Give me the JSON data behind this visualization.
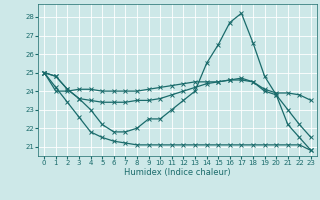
{
  "xlabel": "Humidex (Indice chaleur)",
  "bg_color": "#cde8e8",
  "line_color": "#1a6b6b",
  "grid_color": "#ffffff",
  "xlim": [
    -0.5,
    23.5
  ],
  "ylim": [
    20.5,
    28.7
  ],
  "yticks": [
    21,
    22,
    23,
    24,
    25,
    26,
    27,
    28
  ],
  "xticks": [
    0,
    1,
    2,
    3,
    4,
    5,
    6,
    7,
    8,
    9,
    10,
    11,
    12,
    13,
    14,
    15,
    16,
    17,
    18,
    19,
    20,
    21,
    22,
    23
  ],
  "series": [
    [
      25.0,
      24.8,
      24.1,
      23.6,
      23.0,
      22.2,
      21.8,
      21.8,
      22.0,
      22.5,
      22.5,
      23.0,
      23.5,
      24.0,
      25.5,
      26.5,
      27.7,
      28.2,
      26.6,
      24.8,
      23.8,
      22.2,
      21.5,
      20.8
    ],
    [
      25.0,
      24.8,
      24.1,
      23.6,
      23.5,
      23.4,
      23.4,
      23.4,
      23.5,
      23.5,
      23.6,
      23.8,
      24.0,
      24.2,
      24.4,
      24.5,
      24.6,
      24.6,
      24.5,
      24.0,
      23.8,
      23.0,
      22.2,
      21.5
    ],
    [
      25.0,
      24.0,
      24.0,
      24.1,
      24.1,
      24.0,
      24.0,
      24.0,
      24.0,
      24.1,
      24.2,
      24.3,
      24.4,
      24.5,
      24.5,
      24.5,
      24.6,
      24.7,
      24.5,
      24.1,
      23.9,
      23.9,
      23.8,
      23.5
    ],
    [
      25.0,
      24.2,
      23.4,
      22.6,
      21.8,
      21.5,
      21.3,
      21.2,
      21.1,
      21.1,
      21.1,
      21.1,
      21.1,
      21.1,
      21.1,
      21.1,
      21.1,
      21.1,
      21.1,
      21.1,
      21.1,
      21.1,
      21.1,
      20.8
    ]
  ]
}
